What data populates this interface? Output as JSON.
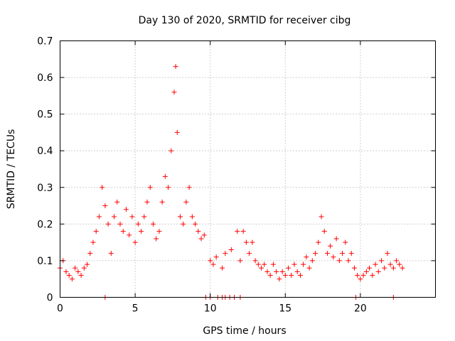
{
  "chart_data": {
    "type": "scatter",
    "title": "Day 130 of 2020, SRMTID for receiver cibg",
    "xlabel": "GPS time / hours",
    "ylabel": "SRMTID / TECUs",
    "xlim": [
      0,
      25
    ],
    "ylim": [
      0,
      0.7
    ],
    "x_ticks": [
      0,
      5,
      10,
      15,
      20
    ],
    "y_ticks": [
      0,
      0.1,
      0.2,
      0.3,
      0.4,
      0.5,
      0.6,
      0.7
    ],
    "x_tick_labels": [
      "0",
      "5",
      "10",
      "15",
      "20"
    ],
    "y_tick_labels": [
      "0",
      "0.1",
      "0.2",
      "0.3",
      "0.4",
      "0.5",
      "0.6",
      "0.7"
    ],
    "grid": true,
    "marker": "+",
    "color": "#ff0000",
    "series": [
      {
        "name": "SRMTID",
        "points": [
          [
            0.0,
            0.08
          ],
          [
            0.2,
            0.1
          ],
          [
            0.4,
            0.07
          ],
          [
            0.6,
            0.06
          ],
          [
            0.8,
            0.05
          ],
          [
            1.0,
            0.08
          ],
          [
            1.2,
            0.07
          ],
          [
            1.4,
            0.06
          ],
          [
            1.6,
            0.08
          ],
          [
            1.8,
            0.09
          ],
          [
            2.0,
            0.12
          ],
          [
            2.2,
            0.15
          ],
          [
            2.4,
            0.18
          ],
          [
            2.6,
            0.22
          ],
          [
            2.8,
            0.3
          ],
          [
            3.0,
            0.25
          ],
          [
            3.2,
            0.2
          ],
          [
            3.4,
            0.12
          ],
          [
            3.6,
            0.22
          ],
          [
            3.8,
            0.26
          ],
          [
            4.0,
            0.2
          ],
          [
            4.2,
            0.18
          ],
          [
            4.4,
            0.24
          ],
          [
            4.6,
            0.17
          ],
          [
            4.8,
            0.22
          ],
          [
            5.0,
            0.15
          ],
          [
            5.2,
            0.2
          ],
          [
            5.4,
            0.18
          ],
          [
            5.6,
            0.22
          ],
          [
            5.8,
            0.26
          ],
          [
            6.0,
            0.3
          ],
          [
            6.2,
            0.2
          ],
          [
            6.4,
            0.16
          ],
          [
            6.6,
            0.18
          ],
          [
            6.8,
            0.26
          ],
          [
            7.0,
            0.33
          ],
          [
            7.2,
            0.3
          ],
          [
            7.4,
            0.4
          ],
          [
            7.6,
            0.56
          ],
          [
            7.7,
            0.63
          ],
          [
            7.8,
            0.45
          ],
          [
            8.0,
            0.22
          ],
          [
            8.2,
            0.2
          ],
          [
            8.4,
            0.26
          ],
          [
            8.6,
            0.3
          ],
          [
            8.8,
            0.22
          ],
          [
            9.0,
            0.2
          ],
          [
            9.2,
            0.18
          ],
          [
            9.4,
            0.16
          ],
          [
            9.6,
            0.17
          ],
          [
            10.0,
            0.1
          ],
          [
            10.2,
            0.09
          ],
          [
            10.4,
            0.11
          ],
          [
            10.8,
            0.08
          ],
          [
            11.0,
            0.12
          ],
          [
            11.4,
            0.13
          ],
          [
            11.8,
            0.18
          ],
          [
            12.0,
            0.1
          ],
          [
            12.2,
            0.18
          ],
          [
            12.4,
            0.15
          ],
          [
            12.6,
            0.12
          ],
          [
            12.8,
            0.15
          ],
          [
            13.0,
            0.1
          ],
          [
            13.2,
            0.09
          ],
          [
            13.4,
            0.08
          ],
          [
            13.6,
            0.09
          ],
          [
            13.8,
            0.07
          ],
          [
            14.0,
            0.06
          ],
          [
            14.2,
            0.09
          ],
          [
            14.4,
            0.07
          ],
          [
            14.6,
            0.05
          ],
          [
            14.8,
            0.07
          ],
          [
            15.0,
            0.06
          ],
          [
            15.2,
            0.08
          ],
          [
            15.4,
            0.06
          ],
          [
            15.6,
            0.09
          ],
          [
            15.8,
            0.07
          ],
          [
            16.0,
            0.06
          ],
          [
            16.2,
            0.09
          ],
          [
            16.4,
            0.11
          ],
          [
            16.6,
            0.08
          ],
          [
            16.8,
            0.1
          ],
          [
            17.0,
            0.12
          ],
          [
            17.2,
            0.15
          ],
          [
            17.4,
            0.22
          ],
          [
            17.6,
            0.18
          ],
          [
            17.8,
            0.12
          ],
          [
            18.0,
            0.14
          ],
          [
            18.2,
            0.11
          ],
          [
            18.4,
            0.16
          ],
          [
            18.6,
            0.1
          ],
          [
            18.8,
            0.12
          ],
          [
            19.0,
            0.15
          ],
          [
            19.2,
            0.1
          ],
          [
            19.4,
            0.12
          ],
          [
            19.6,
            0.08
          ],
          [
            19.8,
            0.06
          ],
          [
            20.0,
            0.05
          ],
          [
            20.2,
            0.06
          ],
          [
            20.4,
            0.07
          ],
          [
            20.6,
            0.08
          ],
          [
            20.8,
            0.06
          ],
          [
            21.0,
            0.09
          ],
          [
            21.2,
            0.07
          ],
          [
            21.4,
            0.1
          ],
          [
            21.6,
            0.08
          ],
          [
            21.8,
            0.12
          ],
          [
            22.0,
            0.09
          ],
          [
            22.2,
            0.08
          ],
          [
            22.4,
            0.1
          ],
          [
            22.6,
            0.09
          ],
          [
            22.8,
            0.08
          ],
          [
            3.0,
            0.0
          ],
          [
            9.7,
            0.0
          ],
          [
            10.0,
            0.0
          ],
          [
            10.5,
            0.0
          ],
          [
            10.8,
            0.0
          ],
          [
            11.0,
            0.0
          ],
          [
            11.3,
            0.0
          ],
          [
            11.6,
            0.0
          ],
          [
            12.0,
            0.0
          ],
          [
            19.7,
            0.0
          ],
          [
            22.2,
            0.0
          ]
        ]
      }
    ]
  }
}
